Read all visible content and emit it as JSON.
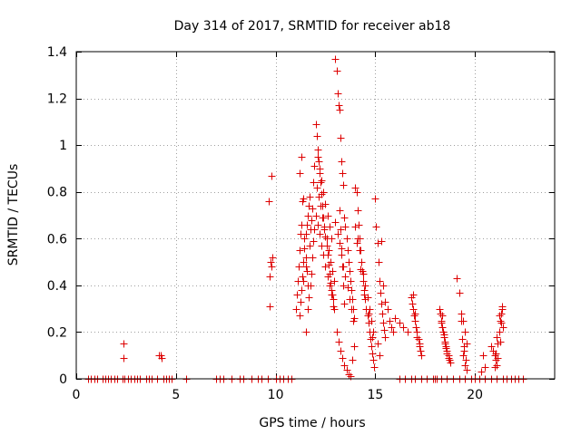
{
  "chart_data": {
    "type": "scatter",
    "title": "Day 314 of 2017, SRMTID for receiver ab18",
    "xlabel": "GPS time / hours",
    "ylabel": "SRMTID / TECUs",
    "xlim": [
      0,
      24
    ],
    "ylim": [
      0,
      1.4
    ],
    "xticks": [
      0,
      5,
      10,
      15,
      20
    ],
    "xtick_labels": [
      "0",
      "5",
      "10",
      "15",
      "20"
    ],
    "yticks": [
      0,
      0.2,
      0.4,
      0.6,
      0.8,
      1.0,
      1.2,
      1.4
    ],
    "ytick_labels": [
      "0",
      "0.2",
      "0.4",
      "0.6",
      "0.8",
      "1",
      "1.2",
      "1.4"
    ],
    "grid": true,
    "marker": "+",
    "marker_color": "#dd0000",
    "series": [
      {
        "name": "SRMTID",
        "x": [
          0.6,
          0.75,
          0.9,
          1.05,
          1.3,
          1.45,
          1.6,
          1.75,
          1.9,
          2.05,
          2.3,
          2.4,
          2.35,
          2.38,
          2.6,
          2.75,
          2.9,
          3.05,
          3.2,
          3.5,
          3.65,
          3.8,
          4.05,
          4.15,
          4.25,
          4.3,
          4.35,
          4.5,
          4.65,
          4.8,
          5.5,
          7.0,
          7.2,
          7.4,
          7.8,
          8.2,
          8.4,
          8.8,
          9.1,
          9.3,
          9.6,
          9.7,
          9.75,
          9.8,
          9.65,
          9.72,
          9.78,
          9.85,
          10.0,
          10.2,
          10.4,
          10.6,
          10.8,
          11.0,
          11.05,
          11.1,
          11.15,
          11.2,
          11.25,
          11.3,
          11.35,
          11.4,
          11.45,
          11.5,
          11.55,
          11.6,
          11.65,
          11.7,
          11.75,
          11.8,
          11.85,
          11.9,
          11.95,
          11.2,
          11.25,
          11.3,
          11.35,
          11.4,
          11.45,
          11.5,
          11.55,
          11.6,
          11.65,
          11.7,
          11.75,
          11.8,
          11.85,
          11.9,
          11.95,
          11.2,
          11.3,
          11.4,
          11.5,
          11.5,
          11.6,
          12.0,
          12.05,
          12.1,
          12.15,
          12.2,
          12.25,
          12.3,
          12.35,
          12.4,
          12.45,
          12.5,
          12.55,
          12.6,
          12.65,
          12.7,
          12.75,
          12.8,
          12.85,
          12.9,
          12.95,
          12.0,
          12.1,
          12.2,
          12.3,
          12.4,
          12.5,
          12.6,
          12.7,
          12.8,
          12.9,
          12.05,
          12.15,
          12.25,
          12.35,
          12.45,
          12.55,
          12.65,
          12.75,
          12.85,
          12.95,
          12.1,
          12.2,
          12.3,
          12.4,
          12.5,
          12.6,
          12.7,
          12.8,
          13.0,
          13.05,
          13.1,
          13.15,
          13.2,
          13.25,
          13.3,
          13.35,
          13.4,
          13.45,
          13.5,
          13.55,
          13.6,
          13.65,
          13.7,
          13.75,
          13.8,
          13.85,
          13.9,
          13.95,
          13.0,
          13.1,
          13.2,
          13.3,
          13.4,
          13.5,
          13.6,
          13.7,
          13.8,
          13.9,
          13.05,
          13.15,
          13.25,
          13.35,
          13.45,
          13.55,
          13.65,
          13.75,
          13.85,
          13.95,
          13.2,
          13.25,
          13.3,
          13.35,
          13.4,
          13.45,
          14.0,
          14.05,
          14.1,
          14.15,
          14.2,
          14.25,
          14.3,
          14.35,
          14.4,
          14.45,
          14.5,
          14.55,
          14.6,
          14.65,
          14.7,
          14.75,
          14.8,
          14.85,
          14.9,
          14.95,
          14.0,
          14.1,
          14.2,
          14.3,
          14.4,
          14.5,
          14.6,
          14.7,
          14.8,
          14.9,
          14.05,
          14.25,
          14.45,
          14.65,
          14.85,
          15.0,
          15.05,
          15.1,
          15.15,
          15.2,
          15.25,
          15.3,
          15.35,
          15.4,
          15.45,
          15.5,
          15.6,
          15.7,
          15.8,
          15.9,
          16.0,
          16.2,
          16.4,
          16.6,
          15.3,
          15.4,
          15.5,
          15.1,
          15.2,
          16.8,
          16.85,
          16.9,
          16.95,
          17.0,
          17.05,
          17.1,
          17.15,
          17.2,
          17.25,
          17.3,
          16.9,
          17.0,
          17.1,
          17.2,
          18.2,
          18.25,
          18.3,
          18.35,
          18.4,
          18.45,
          18.5,
          18.55,
          18.6,
          18.65,
          18.7,
          18.75,
          18.3,
          18.4,
          18.5,
          18.6,
          18.35,
          18.45,
          18.55,
          18.65,
          19.1,
          19.2,
          19.3,
          19.4,
          19.5,
          19.6,
          19.35,
          19.45,
          19.55,
          19.4,
          19.5,
          19.6,
          19.3,
          19.45,
          20.3,
          20.4,
          20.5,
          20.8,
          20.9,
          21.0,
          21.05,
          21.1,
          21.15,
          21.2,
          21.25,
          21.3,
          21.35,
          21.4,
          21.0,
          21.1,
          21.2,
          21.3,
          21.05,
          21.15,
          21.25,
          21.35,
          16.2,
          16.5,
          16.8,
          17.0,
          17.3,
          17.6,
          17.9,
          18.0,
          18.1,
          18.3,
          18.6,
          18.9,
          19.2,
          19.5,
          19.8,
          20.0,
          20.2,
          20.5,
          20.8,
          21.1,
          21.4,
          21.6,
          21.8,
          22.0,
          22.2,
          22.4
        ],
        "y": [
          0,
          0,
          0,
          0,
          0,
          0,
          0,
          0,
          0,
          0,
          0,
          0,
          0.15,
          0.09,
          0,
          0,
          0,
          0,
          0,
          0,
          0,
          0,
          0,
          0.1,
          0.1,
          0.09,
          0,
          0,
          0,
          0,
          0,
          0,
          0,
          0,
          0,
          0,
          0,
          0,
          0,
          0,
          0,
          0.31,
          0.5,
          0.87,
          0.76,
          0.44,
          0.48,
          0.52,
          0,
          0,
          0,
          0,
          0,
          0.3,
          0.36,
          0.42,
          0.48,
          0.55,
          0.62,
          0.66,
          0.76,
          0.77,
          0.6,
          0.52,
          0.46,
          0.4,
          0.35,
          0.57,
          0.64,
          0.68,
          0.73,
          0.84,
          0.91,
          0.27,
          0.33,
          0.38,
          0.44,
          0.5,
          0.56,
          0.62,
          0.66,
          0.7,
          0.74,
          0.78,
          0.4,
          0.45,
          0.52,
          0.59,
          0.64,
          0.88,
          0.95,
          0.42,
          0.48,
          0.2,
          0.3,
          1.09,
          1.04,
          0.98,
          0.93,
          0.88,
          0.84,
          0.79,
          0.74,
          0.69,
          0.65,
          0.61,
          0.57,
          0.53,
          0.49,
          0.45,
          0.41,
          0.38,
          0.36,
          0.34,
          0.3,
          0.7,
          0.66,
          0.62,
          0.57,
          0.53,
          0.48,
          0.44,
          0.4,
          0.36,
          0.31,
          0.82,
          0.78,
          0.74,
          0.69,
          0.64,
          0.6,
          0.55,
          0.5,
          0.46,
          0.42,
          0.95,
          0.9,
          0.85,
          0.8,
          0.75,
          0.7,
          0.65,
          0.6,
          1.37,
          1.32,
          1.22,
          1.17,
          1.15,
          1.03,
          0.93,
          0.88,
          0.83,
          0.69,
          0.65,
          0.6,
          0.55,
          0.5,
          0.46,
          0.42,
          0.38,
          0.34,
          0.3,
          0.26,
          0.67,
          0.62,
          0.58,
          0.53,
          0.48,
          0.44,
          0.39,
          0.34,
          0.3,
          0.25,
          0.2,
          0.16,
          0.12,
          0.09,
          0.06,
          0.04,
          0.02,
          0.01,
          0.08,
          0.14,
          0.72,
          0.64,
          0.56,
          0.48,
          0.4,
          0.32,
          0.82,
          0.8,
          0.72,
          0.66,
          0.6,
          0.55,
          0.5,
          0.46,
          0.42,
          0.38,
          0.34,
          0.3,
          0.27,
          0.24,
          0.2,
          0.17,
          0.14,
          0.11,
          0.08,
          0.05,
          0.65,
          0.6,
          0.55,
          0.5,
          0.45,
          0.4,
          0.35,
          0.3,
          0.25,
          0.2,
          0.58,
          0.47,
          0.36,
          0.28,
          0.18,
          0.77,
          0.65,
          0.58,
          0.5,
          0.42,
          0.37,
          0.32,
          0.28,
          0.24,
          0.21,
          0.18,
          0.3,
          0.25,
          0.22,
          0.2,
          0.26,
          0.24,
          0.22,
          0.2,
          0.59,
          0.4,
          0.33,
          0.15,
          0.1,
          0.35,
          0.32,
          0.3,
          0.27,
          0.25,
          0.22,
          0.2,
          0.17,
          0.15,
          0.12,
          0.1,
          0.36,
          0.28,
          0.18,
          0.14,
          0.3,
          0.28,
          0.25,
          0.22,
          0.2,
          0.18,
          0.16,
          0.14,
          0.12,
          0.1,
          0.08,
          0.07,
          0.24,
          0.2,
          0.15,
          0.11,
          0.27,
          0.19,
          0.13,
          0.09,
          0.43,
          0.37,
          0.28,
          0.25,
          0.2,
          0.15,
          0.17,
          0.12,
          0.08,
          0.1,
          0.06,
          0.04,
          0.25,
          0.14,
          0.03,
          0.1,
          0.05,
          0.14,
          0.12,
          0.1,
          0.08,
          0.06,
          0.15,
          0.2,
          0.25,
          0.28,
          0.3,
          0.22,
          0.05,
          0.18,
          0.27,
          0.24,
          0.11,
          0.09,
          0.16,
          0.31,
          0,
          0,
          0,
          0,
          0,
          0,
          0,
          0,
          0,
          0,
          0,
          0,
          0,
          0,
          0,
          0,
          0,
          0,
          0,
          0,
          0,
          0,
          0,
          0,
          0,
          0
        ]
      }
    ]
  }
}
